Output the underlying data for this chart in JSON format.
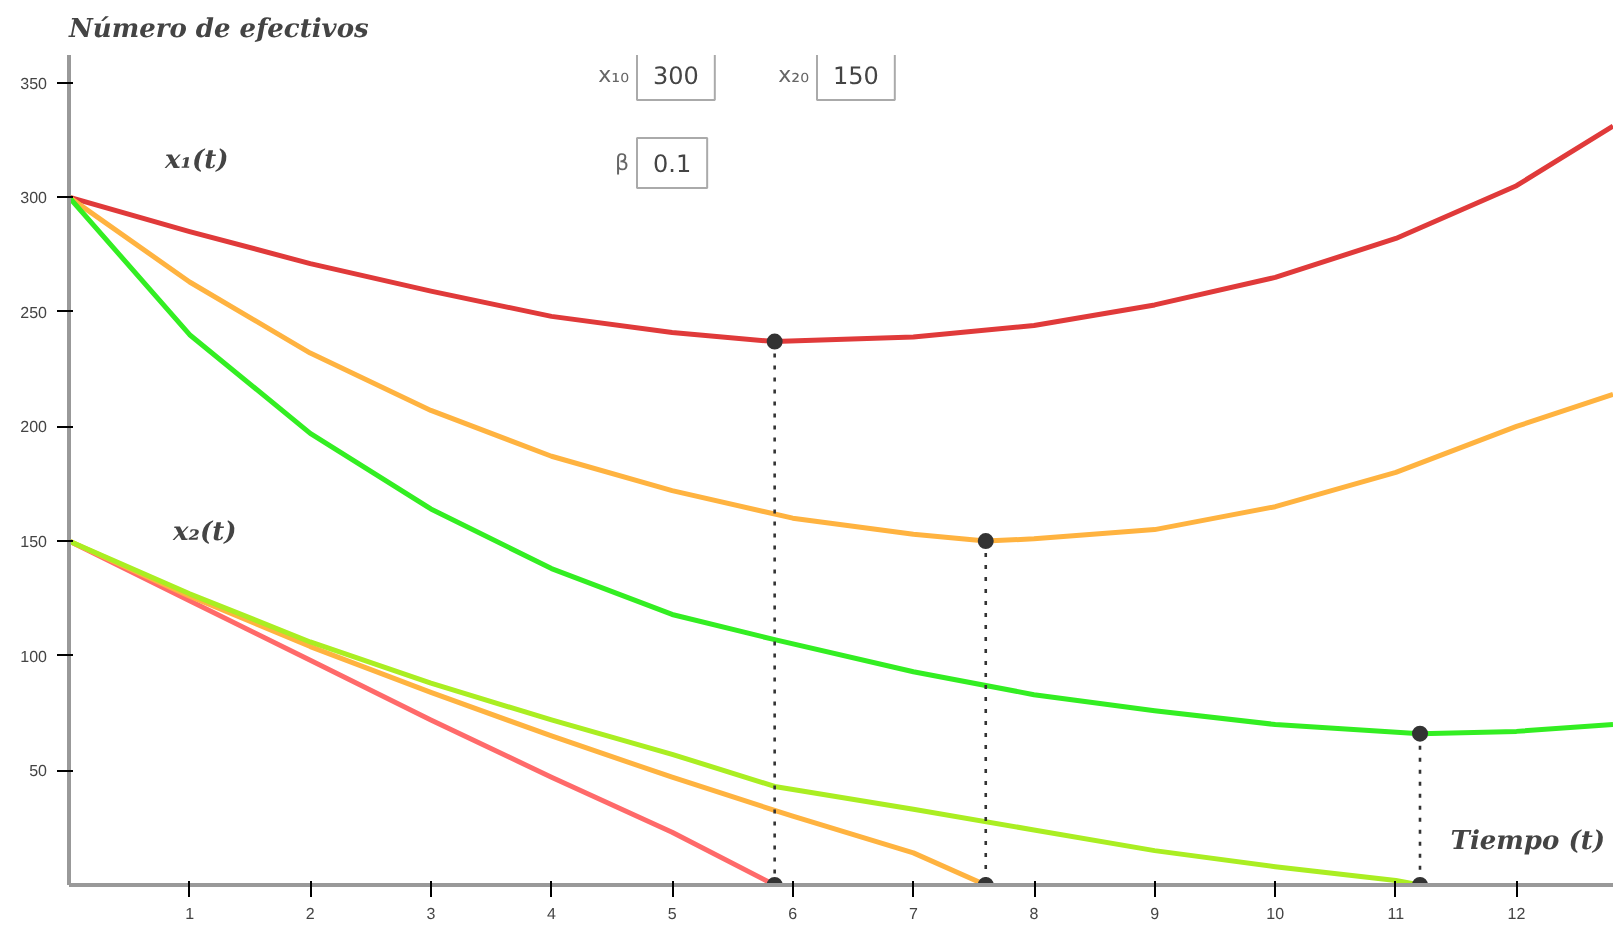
{
  "chart_data": {
    "type": "line",
    "ylabel": "Número de efectivos",
    "xlabel": "Tiempo (t)",
    "xlim": [
      0,
      12.8
    ],
    "ylim": [
      0,
      362
    ],
    "xticks": [
      1,
      2,
      3,
      4,
      5,
      6,
      7,
      8,
      9,
      10,
      11,
      12
    ],
    "yticks": [
      50,
      100,
      150,
      200,
      250,
      300,
      350
    ],
    "grid": false,
    "marker": "none",
    "line_style": "solid",
    "series": [
      {
        "color": "#e03a3a",
        "x": [
          0,
          1,
          2,
          3,
          4,
          5,
          5.85,
          7,
          8,
          9,
          10,
          11,
          12,
          12.8
        ],
        "values": [
          300,
          285,
          271,
          259,
          248,
          241,
          237,
          239,
          244,
          253,
          265,
          282,
          305,
          331
        ]
      },
      {
        "color": "#ffb340",
        "x": [
          0,
          1,
          2,
          3,
          4,
          5,
          6,
          7,
          7.6,
          8,
          9,
          10,
          11,
          12,
          12.8
        ],
        "values": [
          300,
          263,
          232,
          207,
          187,
          172,
          160,
          153,
          150,
          151,
          155,
          165,
          180,
          200,
          214
        ]
      },
      {
        "color": "#33ee22",
        "x": [
          0,
          1,
          2,
          3,
          4,
          5,
          5.85,
          7,
          8,
          9,
          10,
          11.2,
          12,
          12.8
        ],
        "values": [
          300,
          240,
          197,
          164,
          138,
          118,
          107,
          93,
          83,
          76,
          70,
          66,
          67,
          70
        ]
      },
      {
        "color": "#ff6a6a",
        "x": [
          0,
          1,
          2,
          3,
          4,
          5,
          5.85
        ],
        "values": [
          150,
          124,
          98,
          72,
          47,
          23,
          0
        ]
      },
      {
        "color": "#ffb340",
        "x": [
          0,
          1,
          2,
          3,
          4,
          5,
          6,
          7,
          7.6
        ],
        "values": [
          150,
          126,
          104,
          84,
          65,
          47,
          30,
          14,
          0
        ]
      },
      {
        "color": "#aaee22",
        "x": [
          0,
          1,
          2,
          3,
          4,
          5,
          5.85,
          7,
          8,
          9,
          10,
          11,
          11.2
        ],
        "values": [
          150,
          127,
          106,
          88,
          72,
          57,
          43,
          33,
          24,
          15,
          8,
          2,
          0
        ]
      },
      {
        "color": "#333333",
        "x": [
          5.85,
          5.85
        ],
        "values": [
          237,
          0
        ],
        "line_style": "dotted",
        "marker": "circle"
      },
      {
        "color": "#333333",
        "x": [
          7.6,
          7.6
        ],
        "values": [
          150,
          0
        ],
        "line_style": "dotted",
        "marker": "circle"
      },
      {
        "color": "#333333",
        "x": [
          11.2,
          11.2
        ],
        "values": [
          66,
          0
        ],
        "line_style": "dotted",
        "marker": "circle"
      }
    ],
    "annotations": [
      "x₁(t)",
      "x₂(t)",
      "x₁₀",
      "300",
      "x₂₀",
      "150",
      "β",
      "0.1"
    ]
  }
}
